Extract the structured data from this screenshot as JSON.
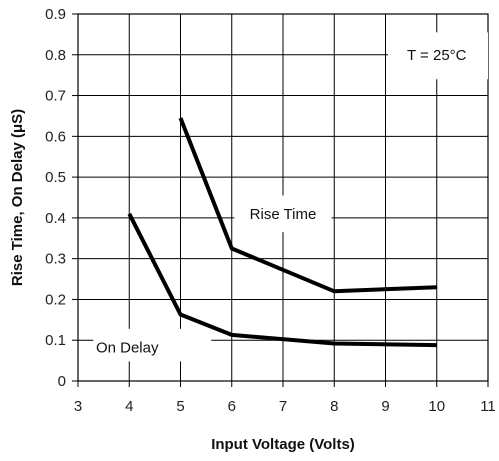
{
  "chart_data": {
    "type": "line",
    "title": "",
    "xlabel": "Input Voltage (Volts)",
    "ylabel": "Rise Time,  On Delay  (μS)",
    "xlim": [
      3,
      11
    ],
    "ylim": [
      0,
      0.9
    ],
    "x_ticks": [
      "3",
      "4",
      "5",
      "6",
      "7",
      "8",
      "9",
      "10",
      "11"
    ],
    "y_ticks": [
      "0",
      "0.1",
      "0.2",
      "0.3",
      "0.4",
      "0.5",
      "0.6",
      "0.7",
      "0.8",
      "0.9"
    ],
    "x_tick_values": [
      3,
      4,
      5,
      6,
      7,
      8,
      9,
      10,
      11
    ],
    "y_tick_values": [
      0,
      0.1,
      0.2,
      0.3,
      0.4,
      0.5,
      0.6,
      0.7,
      0.8,
      0.9
    ],
    "grid": true,
    "series": [
      {
        "name": "Rise Time",
        "x": [
          5,
          6,
          8,
          10
        ],
        "y": [
          0.645,
          0.325,
          0.22,
          0.23
        ],
        "color": "#000000"
      },
      {
        "name": "On Delay",
        "x": [
          4,
          5,
          6,
          8,
          10
        ],
        "y": [
          0.41,
          0.163,
          0.113,
          0.092,
          0.088
        ],
        "color": "#000000"
      }
    ],
    "annotations": [
      {
        "text": "T = 25°C"
      },
      {
        "text": "Rise Time"
      },
      {
        "text": "On Delay"
      }
    ]
  }
}
